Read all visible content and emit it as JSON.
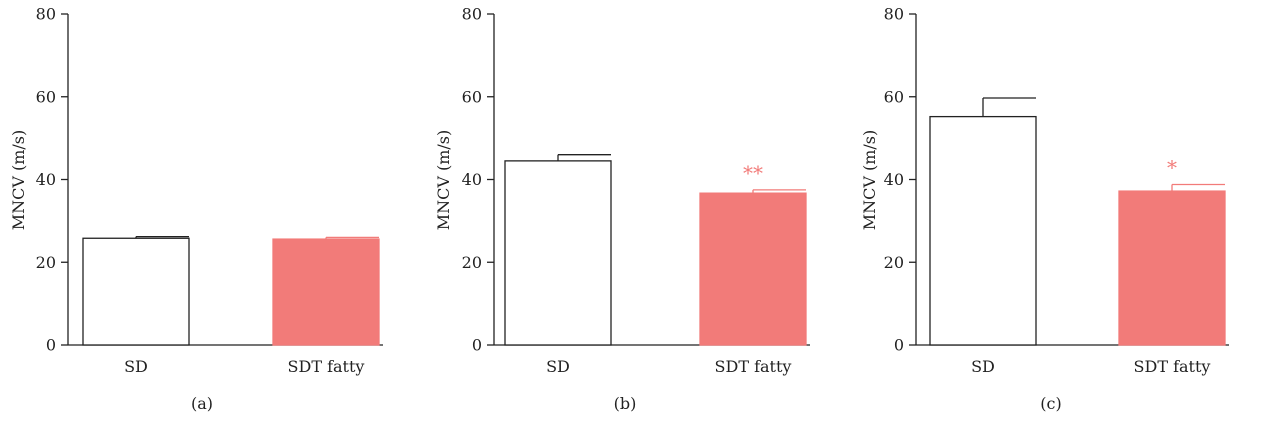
{
  "colors": {
    "control": "#ffffff",
    "treated": "#f27b79",
    "axis": "#222222",
    "sig": "#f27b79"
  },
  "chart_data": [
    {
      "type": "bar",
      "label": "(a)",
      "categories": [
        "SD",
        "SDT fatty"
      ],
      "values": [
        25.8,
        25.6
      ],
      "errors": [
        0.4,
        0.4
      ],
      "significance": [
        "",
        ""
      ],
      "ylabel": "MNCV (m/s)",
      "ylim": [
        0,
        80
      ],
      "yticks": [
        "0",
        "20",
        "40",
        "60",
        "80"
      ]
    },
    {
      "type": "bar",
      "label": "(b)",
      "categories": [
        "SD",
        "SDT fatty"
      ],
      "values": [
        44.5,
        36.7
      ],
      "errors": [
        1.5,
        0.8
      ],
      "significance": [
        "",
        "**"
      ],
      "ylabel": "MNCV (m/s)",
      "ylim": [
        0,
        80
      ],
      "yticks": [
        "0",
        "20",
        "40",
        "60",
        "80"
      ]
    },
    {
      "type": "bar",
      "label": "(c)",
      "categories": [
        "SD",
        "SDT fatty"
      ],
      "values": [
        55.2,
        37.2
      ],
      "errors": [
        4.5,
        1.6
      ],
      "significance": [
        "",
        "*"
      ],
      "ylabel": "MNCV (m/s)",
      "ylim": [
        0,
        80
      ],
      "yticks": [
        "0",
        "20",
        "40",
        "60",
        "80"
      ]
    }
  ]
}
